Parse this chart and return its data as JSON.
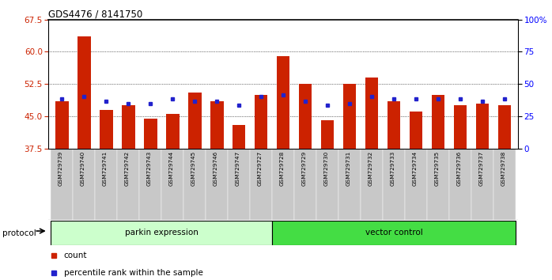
{
  "title": "GDS4476 / 8141750",
  "samples": [
    "GSM729739",
    "GSM729740",
    "GSM729741",
    "GSM729742",
    "GSM729743",
    "GSM729744",
    "GSM729745",
    "GSM729746",
    "GSM729747",
    "GSM729727",
    "GSM729728",
    "GSM729729",
    "GSM729730",
    "GSM729731",
    "GSM729732",
    "GSM729733",
    "GSM729734",
    "GSM729735",
    "GSM729736",
    "GSM729737",
    "GSM729738"
  ],
  "count_values": [
    48.5,
    63.5,
    46.5,
    47.5,
    44.5,
    45.5,
    50.5,
    48.5,
    43.0,
    50.0,
    59.0,
    52.5,
    44.0,
    52.5,
    54.0,
    48.5,
    46.0,
    50.0,
    47.5,
    48.0,
    47.5
  ],
  "percentile_values": [
    49.0,
    49.5,
    48.5,
    48.0,
    48.0,
    49.0,
    48.5,
    48.5,
    47.5,
    49.5,
    50.0,
    48.5,
    47.5,
    48.0,
    49.5,
    49.0,
    49.0,
    49.0,
    49.0,
    48.5,
    49.0
  ],
  "n_parkin": 10,
  "n_vector": 11,
  "parkin_label": "parkin expression",
  "vector_label": "vector control",
  "protocol_label": "protocol",
  "ymin": 37.5,
  "ymax": 67.5,
  "yticks_left": [
    37.5,
    45.0,
    52.5,
    60.0,
    67.5
  ],
  "yticks_right": [
    0,
    25,
    50,
    75,
    100
  ],
  "bar_color": "#CC2200",
  "square_color": "#2222CC",
  "parkin_bg": "#CCFFCC",
  "vector_bg": "#44DD44",
  "xticklabel_bg": "#C8C8C8",
  "legend_count_label": "count",
  "legend_pct_label": "percentile rank within the sample",
  "bar_bottom": 37.5
}
